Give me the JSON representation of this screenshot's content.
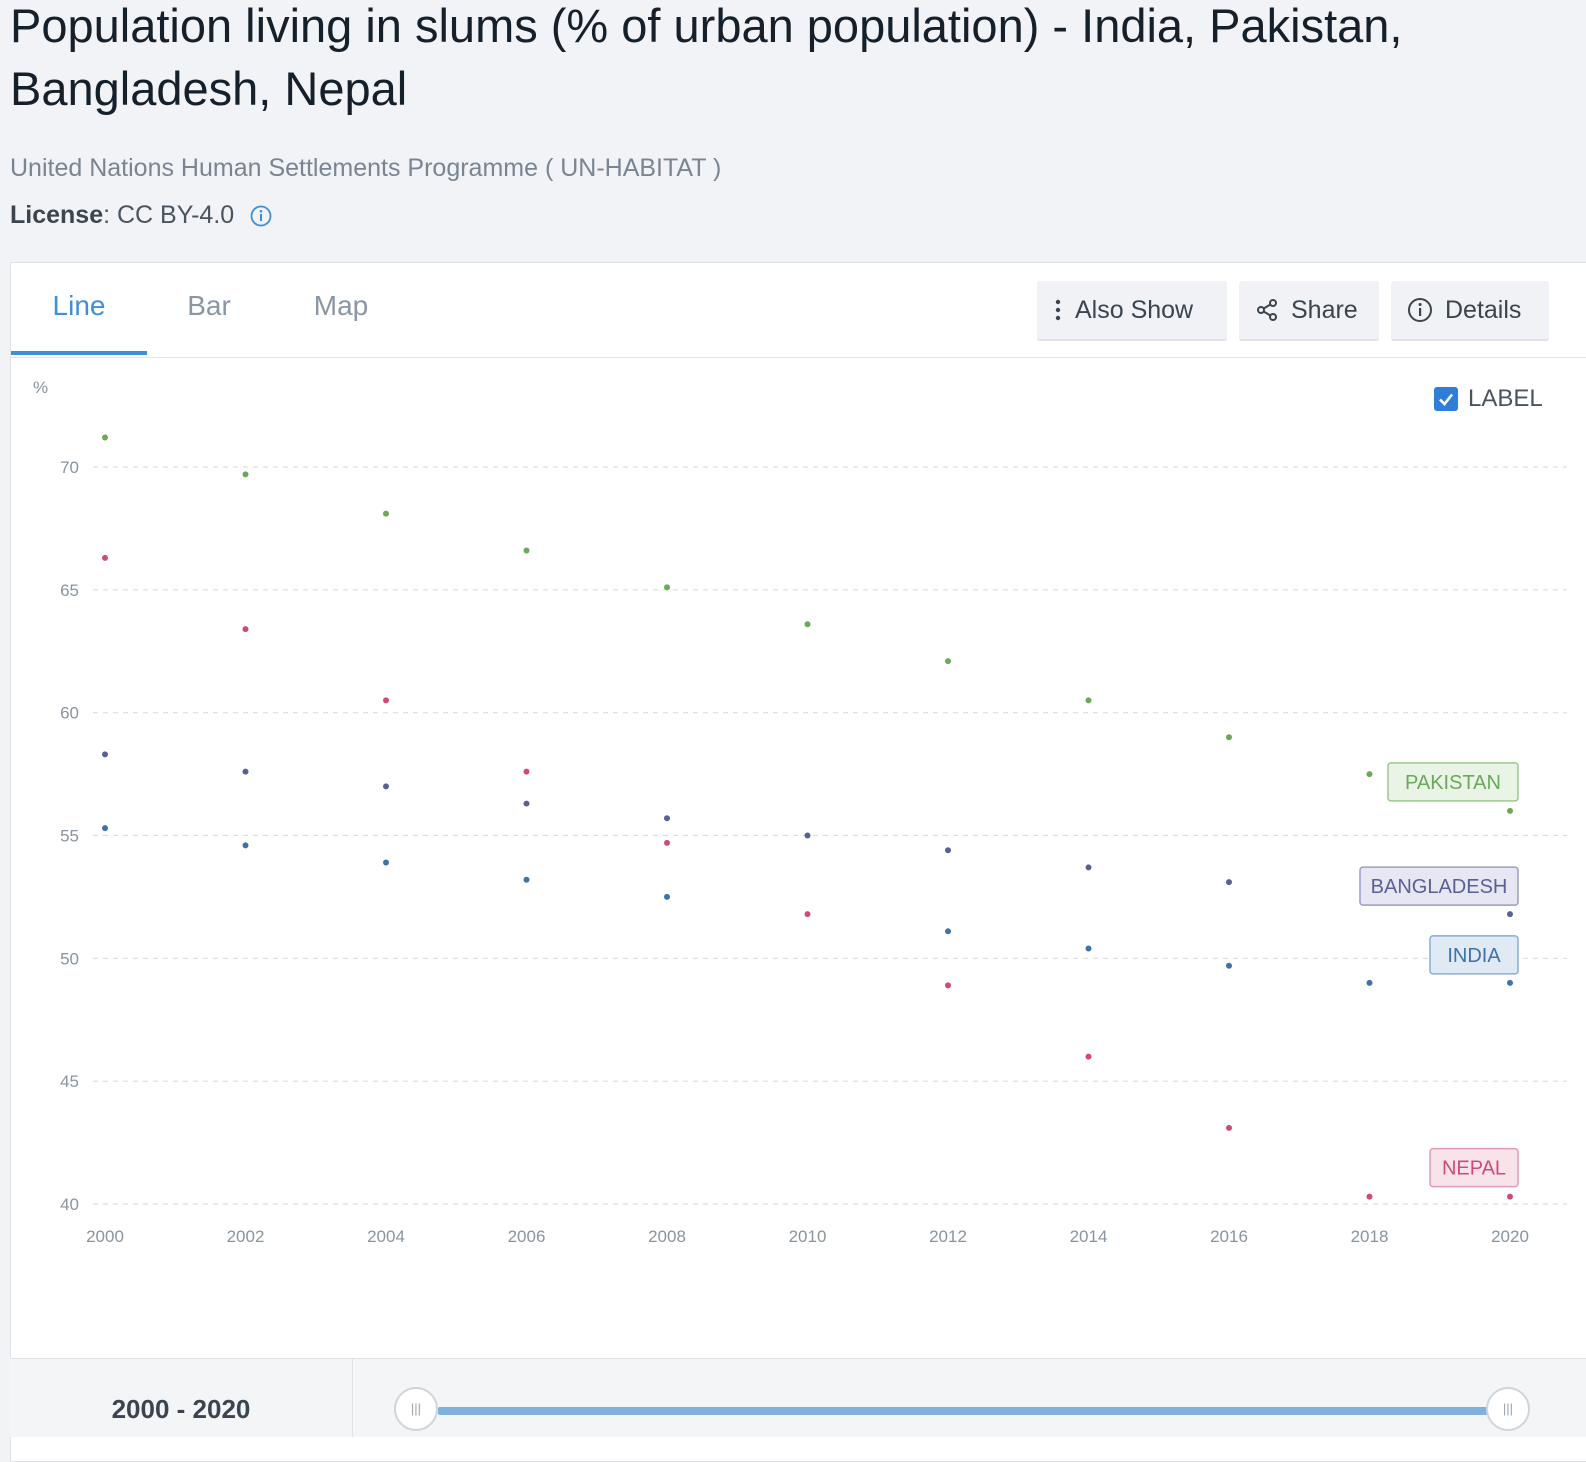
{
  "header": {
    "title": "Population living in slums (% of urban population) - India, Pakistan, Bangladesh, Nepal",
    "source": "United Nations Human Settlements Programme ( UN-HABITAT )",
    "license_key": "License",
    "license_value": " : CC BY-4.0"
  },
  "tabs": [
    {
      "label": "Line",
      "active": true
    },
    {
      "label": "Bar",
      "active": false
    },
    {
      "label": "Map",
      "active": false
    }
  ],
  "toolbar": {
    "also_show": "Also Show",
    "share": "Share",
    "details": "Details"
  },
  "label_toggle": {
    "label": "LABEL",
    "checked": true
  },
  "range": {
    "label": "2000 - 2020",
    "handle_glyph": "|||"
  },
  "colors": {
    "accent": "#3f8fd6",
    "pakistan": "#6aa85a",
    "bangladesh": "#5a5f96",
    "india": "#3e72a8",
    "nepal": "#d0497c"
  },
  "chart_data": {
    "type": "scatter",
    "ylabel": "%",
    "ylim": [
      40,
      72
    ],
    "yticks": [
      40,
      45,
      50,
      55,
      60,
      65,
      70
    ],
    "xlim": [
      2000,
      2020
    ],
    "xticks": [
      2000,
      2002,
      2004,
      2006,
      2008,
      2010,
      2012,
      2014,
      2016,
      2018,
      2020
    ],
    "grid": true,
    "x": [
      2000,
      2002,
      2004,
      2006,
      2008,
      2010,
      2012,
      2014,
      2016,
      2018,
      2020
    ],
    "series": [
      {
        "name": "PAKISTAN",
        "color": "#6aa85a",
        "values": [
          71.2,
          69.7,
          68.1,
          66.6,
          65.1,
          63.6,
          62.1,
          60.5,
          59.0,
          57.5,
          56.0
        ]
      },
      {
        "name": "BANGLADESH",
        "color": "#5a5f96",
        "values": [
          58.3,
          57.6,
          57.0,
          56.3,
          55.7,
          55.0,
          54.4,
          53.7,
          53.1,
          null,
          51.8
        ]
      },
      {
        "name": "INDIA",
        "color": "#3e72a8",
        "values": [
          55.3,
          54.6,
          53.9,
          53.2,
          52.5,
          null,
          51.1,
          50.4,
          49.7,
          49.0,
          49.0
        ]
      },
      {
        "name": "NEPAL",
        "color": "#d0497c",
        "values": [
          66.3,
          63.4,
          60.5,
          57.6,
          54.7,
          51.8,
          48.9,
          46.0,
          43.1,
          40.3,
          40.3
        ]
      }
    ]
  }
}
